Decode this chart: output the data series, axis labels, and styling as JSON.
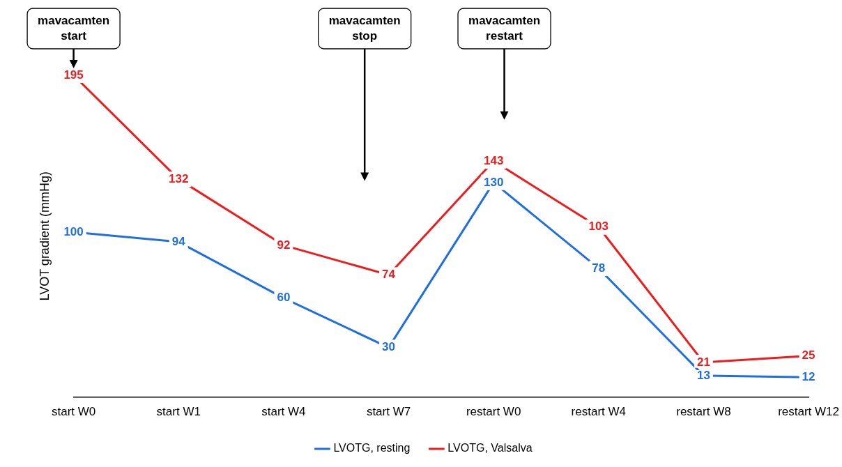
{
  "chart_data": {
    "type": "line",
    "ylabel": "LVOT gradient (mmHg)",
    "categories": [
      "start W0",
      "start W1",
      "start W4",
      "start W7",
      "restart W0",
      "restart W4",
      "restart W8",
      "restart W12"
    ],
    "series": [
      {
        "name": "LVOTG, resting",
        "color": "#1f6fe0",
        "values": [
          100,
          94,
          60,
          30,
          130,
          78,
          13,
          12
        ]
      },
      {
        "name": "LVOTG, Valsalva",
        "color": "#ee1c1c",
        "values": [
          195,
          132,
          92,
          74,
          143,
          103,
          21,
          25
        ]
      }
    ],
    "data_labels": true,
    "legend": "bottom",
    "grid": false,
    "line_style": "solid",
    "tick_labels": "x",
    "annotations": [
      "mavacamten\nstart",
      "mavacamten\nstop",
      "mavacamten\nrestart"
    ]
  }
}
